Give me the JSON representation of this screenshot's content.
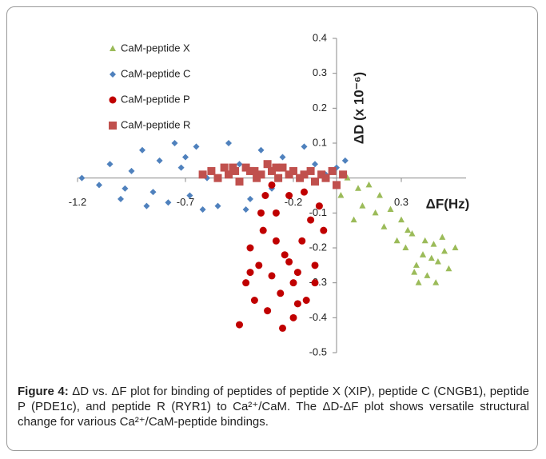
{
  "chart_data": {
    "type": "scatter",
    "x_label": "ΔF(Hz)",
    "y_label": "ΔD (x 10⁻⁶)",
    "xlim": [
      -1.2,
      0.6
    ],
    "ylim": [
      -0.5,
      0.4
    ],
    "xticks": [
      -1.2,
      -0.7,
      -0.2,
      0.3
    ],
    "yticks": [
      0.4,
      0.3,
      0.2,
      0.1,
      0,
      -0.1,
      -0.2,
      -0.3,
      -0.4,
      -0.5
    ],
    "grid": false,
    "legend": "upper-left",
    "series": [
      {
        "name": "CaM-peptide X",
        "color": "#9bbb59",
        "marker": "triangle",
        "x": [
          0.02,
          0.05,
          0.08,
          0.1,
          0.12,
          0.15,
          0.18,
          0.2,
          0.22,
          0.25,
          0.28,
          0.3,
          0.32,
          0.35,
          0.37,
          0.4,
          0.42,
          0.45,
          0.47,
          0.5,
          0.52,
          0.55,
          0.38,
          0.41,
          0.44,
          0.36,
          0.33,
          0.46,
          0.49,
          0.4
        ],
        "values": [
          -0.05,
          0.0,
          -0.12,
          -0.03,
          -0.08,
          -0.02,
          -0.1,
          -0.05,
          -0.14,
          -0.09,
          -0.18,
          -0.12,
          -0.2,
          -0.16,
          -0.25,
          -0.22,
          -0.28,
          -0.19,
          -0.24,
          -0.21,
          -0.26,
          -0.2,
          -0.3,
          -0.18,
          -0.23,
          -0.27,
          -0.15,
          -0.3,
          -0.17,
          -0.22
        ]
      },
      {
        "name": "CaM-peptide C",
        "color": "#4f81bd",
        "marker": "diamond",
        "x": [
          -1.18,
          -1.1,
          -1.05,
          -1.0,
          -0.95,
          -0.9,
          -0.85,
          -0.82,
          -0.78,
          -0.75,
          -0.72,
          -0.68,
          -0.65,
          -0.6,
          -0.55,
          -0.5,
          -0.45,
          -0.4,
          -0.35,
          -0.3,
          -0.25,
          -0.2,
          -0.15,
          -0.1,
          -0.05,
          0.0,
          0.04,
          -0.88,
          -0.62,
          -0.42,
          -0.7,
          -0.98
        ],
        "values": [
          0.0,
          -0.02,
          0.04,
          -0.06,
          0.02,
          0.08,
          -0.04,
          0.05,
          -0.07,
          0.1,
          0.03,
          -0.05,
          0.09,
          0.0,
          -0.08,
          0.1,
          0.04,
          -0.06,
          0.08,
          -0.03,
          0.06,
          0.02,
          0.09,
          0.04,
          0.01,
          0.03,
          0.05,
          -0.08,
          -0.09,
          -0.09,
          0.06,
          -0.03
        ]
      },
      {
        "name": "CaM-peptide P",
        "color": "#c00000",
        "marker": "circle",
        "x": [
          -0.45,
          -0.42,
          -0.4,
          -0.38,
          -0.36,
          -0.34,
          -0.32,
          -0.3,
          -0.28,
          -0.26,
          -0.24,
          -0.22,
          -0.2,
          -0.18,
          -0.16,
          -0.14,
          -0.12,
          -0.1,
          -0.08,
          -0.06,
          -0.3,
          -0.25,
          -0.2,
          -0.15,
          -0.35,
          -0.28,
          -0.18,
          -0.1,
          -0.4,
          -0.22,
          -0.33
        ],
        "values": [
          -0.42,
          -0.3,
          -0.2,
          -0.35,
          -0.25,
          -0.15,
          -0.38,
          -0.28,
          -0.1,
          -0.33,
          -0.22,
          -0.05,
          -0.4,
          -0.27,
          -0.18,
          -0.35,
          -0.12,
          -0.25,
          -0.08,
          -0.15,
          -0.02,
          -0.43,
          -0.3,
          -0.04,
          -0.1,
          -0.18,
          -0.36,
          -0.3,
          -0.27,
          -0.24,
          -0.05
        ]
      },
      {
        "name": "CaM-peptide R",
        "color": "#c0504d",
        "marker": "square",
        "x": [
          -0.62,
          -0.58,
          -0.55,
          -0.52,
          -0.5,
          -0.47,
          -0.45,
          -0.42,
          -0.4,
          -0.37,
          -0.35,
          -0.32,
          -0.3,
          -0.27,
          -0.25,
          -0.22,
          -0.2,
          -0.17,
          -0.15,
          -0.12,
          -0.1,
          -0.07,
          -0.05,
          -0.02,
          0.0,
          0.03,
          -0.48,
          -0.38,
          -0.28
        ],
        "values": [
          0.01,
          0.02,
          0.0,
          0.03,
          0.01,
          0.02,
          -0.01,
          0.03,
          0.02,
          0.0,
          0.01,
          0.04,
          0.02,
          0.0,
          0.03,
          0.01,
          0.02,
          0.0,
          0.01,
          0.02,
          -0.01,
          0.01,
          0.0,
          0.02,
          -0.02,
          0.01,
          0.03,
          0.02,
          0.03
        ]
      }
    ]
  },
  "caption_label": "Figure 4:",
  "caption": "ΔD vs. ΔF plot for binding of peptides of peptide X (XIP), peptide C (CNGB1), peptide P (PDE1c), and peptide R (RYR1) to Ca²⁺/CaM. The ΔD-ΔF plot shows versatile structural change for various Ca²⁺/CaM-peptide bindings."
}
